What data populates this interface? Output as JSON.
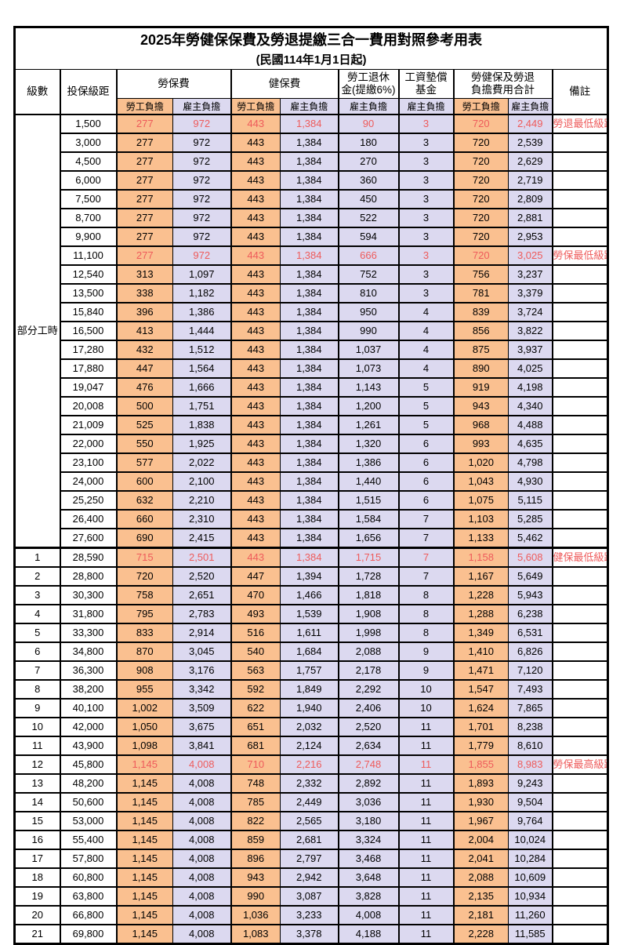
{
  "title": "2025年勞健保保費及勞退提繳三合一費用對照參考用表",
  "subtitle": "(民國114年1月1日起)",
  "colors": {
    "employee_column_bg": "#FAC090",
    "employer_column_bg": "#DCD9F0",
    "highlight_red": "#EE5B5B",
    "border": "#000000"
  },
  "header": {
    "level": "級數",
    "bracket": "投保級距",
    "labor_insurance": "勞保費",
    "health_insurance": "健保費",
    "pension_line1": "勞工退休",
    "pension_line2": "金(提繳6%)",
    "wage_fund_line1": "工資墊償",
    "wage_fund_line2": "基金",
    "total_line1": "勞健保及勞退",
    "total_line2": "負擔費用合計",
    "remark": "備註",
    "employee": "勞工負擔",
    "employer": "雇主負擔"
  },
  "part_time_label": "部分工時",
  "columns": [
    "level",
    "bracket",
    "labor_emp",
    "labor_er",
    "health_emp",
    "health_er",
    "pension_er",
    "fund_er",
    "total_emp",
    "total_er",
    "remark"
  ],
  "rows": [
    [
      "",
      "1,500",
      "277",
      "972",
      "443",
      "1,384",
      "90",
      "3",
      "720",
      "2,449",
      "勞退最低級距"
    ],
    [
      "",
      "3,000",
      "277",
      "972",
      "443",
      "1,384",
      "180",
      "3",
      "720",
      "2,539",
      ""
    ],
    [
      "",
      "4,500",
      "277",
      "972",
      "443",
      "1,384",
      "270",
      "3",
      "720",
      "2,629",
      ""
    ],
    [
      "",
      "6,000",
      "277",
      "972",
      "443",
      "1,384",
      "360",
      "3",
      "720",
      "2,719",
      ""
    ],
    [
      "",
      "7,500",
      "277",
      "972",
      "443",
      "1,384",
      "450",
      "3",
      "720",
      "2,809",
      ""
    ],
    [
      "",
      "8,700",
      "277",
      "972",
      "443",
      "1,384",
      "522",
      "3",
      "720",
      "2,881",
      ""
    ],
    [
      "",
      "9,900",
      "277",
      "972",
      "443",
      "1,384",
      "594",
      "3",
      "720",
      "2,953",
      ""
    ],
    [
      "",
      "11,100",
      "277",
      "972",
      "443",
      "1,384",
      "666",
      "3",
      "720",
      "3,025",
      "勞保最低級距"
    ],
    [
      "",
      "12,540",
      "313",
      "1,097",
      "443",
      "1,384",
      "752",
      "3",
      "756",
      "3,237",
      ""
    ],
    [
      "",
      "13,500",
      "338",
      "1,182",
      "443",
      "1,384",
      "810",
      "3",
      "781",
      "3,379",
      ""
    ],
    [
      "",
      "15,840",
      "396",
      "1,386",
      "443",
      "1,384",
      "950",
      "4",
      "839",
      "3,724",
      ""
    ],
    [
      "",
      "16,500",
      "413",
      "1,444",
      "443",
      "1,384",
      "990",
      "4",
      "856",
      "3,822",
      ""
    ],
    [
      "",
      "17,280",
      "432",
      "1,512",
      "443",
      "1,384",
      "1,037",
      "4",
      "875",
      "3,937",
      ""
    ],
    [
      "",
      "17,880",
      "447",
      "1,564",
      "443",
      "1,384",
      "1,073",
      "4",
      "890",
      "4,025",
      ""
    ],
    [
      "",
      "19,047",
      "476",
      "1,666",
      "443",
      "1,384",
      "1,143",
      "5",
      "919",
      "4,198",
      ""
    ],
    [
      "",
      "20,008",
      "500",
      "1,751",
      "443",
      "1,384",
      "1,200",
      "5",
      "943",
      "4,340",
      ""
    ],
    [
      "",
      "21,009",
      "525",
      "1,838",
      "443",
      "1,384",
      "1,261",
      "5",
      "968",
      "4,488",
      ""
    ],
    [
      "",
      "22,000",
      "550",
      "1,925",
      "443",
      "1,384",
      "1,320",
      "6",
      "993",
      "4,635",
      ""
    ],
    [
      "",
      "23,100",
      "577",
      "2,022",
      "443",
      "1,384",
      "1,386",
      "6",
      "1,020",
      "4,798",
      ""
    ],
    [
      "",
      "24,000",
      "600",
      "2,100",
      "443",
      "1,384",
      "1,440",
      "6",
      "1,043",
      "4,930",
      ""
    ],
    [
      "",
      "25,250",
      "632",
      "2,210",
      "443",
      "1,384",
      "1,515",
      "6",
      "1,075",
      "5,115",
      ""
    ],
    [
      "",
      "26,400",
      "660",
      "2,310",
      "443",
      "1,384",
      "1,584",
      "7",
      "1,103",
      "5,285",
      ""
    ],
    [
      "",
      "27,600",
      "690",
      "2,415",
      "443",
      "1,384",
      "1,656",
      "7",
      "1,133",
      "5,462",
      ""
    ],
    [
      "1",
      "28,590",
      "715",
      "2,501",
      "443",
      "1,384",
      "1,715",
      "7",
      "1,158",
      "5,608",
      "健保最低級距"
    ],
    [
      "2",
      "28,800",
      "720",
      "2,520",
      "447",
      "1,394",
      "1,728",
      "7",
      "1,167",
      "5,649",
      ""
    ],
    [
      "3",
      "30,300",
      "758",
      "2,651",
      "470",
      "1,466",
      "1,818",
      "8",
      "1,228",
      "5,943",
      ""
    ],
    [
      "4",
      "31,800",
      "795",
      "2,783",
      "493",
      "1,539",
      "1,908",
      "8",
      "1,288",
      "6,238",
      ""
    ],
    [
      "5",
      "33,300",
      "833",
      "2,914",
      "516",
      "1,611",
      "1,998",
      "8",
      "1,349",
      "6,531",
      ""
    ],
    [
      "6",
      "34,800",
      "870",
      "3,045",
      "540",
      "1,684",
      "2,088",
      "9",
      "1,410",
      "6,826",
      ""
    ],
    [
      "7",
      "36,300",
      "908",
      "3,176",
      "563",
      "1,757",
      "2,178",
      "9",
      "1,471",
      "7,120",
      ""
    ],
    [
      "8",
      "38,200",
      "955",
      "3,342",
      "592",
      "1,849",
      "2,292",
      "10",
      "1,547",
      "7,493",
      ""
    ],
    [
      "9",
      "40,100",
      "1,002",
      "3,509",
      "622",
      "1,940",
      "2,406",
      "10",
      "1,624",
      "7,865",
      ""
    ],
    [
      "10",
      "42,000",
      "1,050",
      "3,675",
      "651",
      "2,032",
      "2,520",
      "11",
      "1,701",
      "8,238",
      ""
    ],
    [
      "11",
      "43,900",
      "1,098",
      "3,841",
      "681",
      "2,124",
      "2,634",
      "11",
      "1,779",
      "8,610",
      ""
    ],
    [
      "12",
      "45,800",
      "1,145",
      "4,008",
      "710",
      "2,216",
      "2,748",
      "11",
      "1,855",
      "8,983",
      "勞保最高級距"
    ],
    [
      "13",
      "48,200",
      "1,145",
      "4,008",
      "748",
      "2,332",
      "2,892",
      "11",
      "1,893",
      "9,243",
      ""
    ],
    [
      "14",
      "50,600",
      "1,145",
      "4,008",
      "785",
      "2,449",
      "3,036",
      "11",
      "1,930",
      "9,504",
      ""
    ],
    [
      "15",
      "53,000",
      "1,145",
      "4,008",
      "822",
      "2,565",
      "3,180",
      "11",
      "1,967",
      "9,764",
      ""
    ],
    [
      "16",
      "55,400",
      "1,145",
      "4,008",
      "859",
      "2,681",
      "3,324",
      "11",
      "2,004",
      "10,024",
      ""
    ],
    [
      "17",
      "57,800",
      "1,145",
      "4,008",
      "896",
      "2,797",
      "3,468",
      "11",
      "2,041",
      "10,284",
      ""
    ],
    [
      "18",
      "60,800",
      "1,145",
      "4,008",
      "943",
      "2,942",
      "3,648",
      "11",
      "2,088",
      "10,609",
      ""
    ],
    [
      "19",
      "63,800",
      "1,145",
      "4,008",
      "990",
      "3,087",
      "3,828",
      "11",
      "2,135",
      "10,934",
      ""
    ],
    [
      "20",
      "66,800",
      "1,145",
      "4,008",
      "1,036",
      "3,233",
      "4,008",
      "11",
      "2,181",
      "11,260",
      ""
    ],
    [
      "21",
      "69,800",
      "1,145",
      "4,008",
      "1,083",
      "3,378",
      "4,188",
      "11",
      "2,228",
      "11,585",
      ""
    ]
  ],
  "red_rows": [
    0,
    7,
    23,
    34
  ],
  "bold_bracket_rows": [
    23,
    34
  ],
  "section_break_row": 23
}
